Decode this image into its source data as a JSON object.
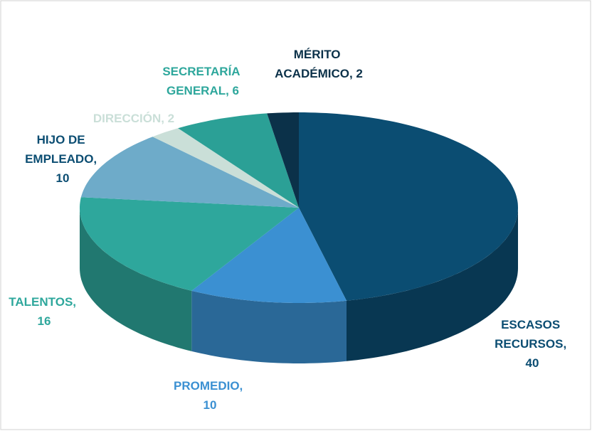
{
  "chart_data": {
    "type": "pie3d",
    "data_labels": [
      "ESCASOS RECURSOS, 40",
      "PROMEDIO, 10",
      "TALENTOS, 16",
      "HIJO DE EMPLEADO, 10",
      "DIRECCIÓN, 2",
      "SECRETARÍA GENERAL, 6",
      "MÉRITO ACADÉMICO, 2"
    ],
    "values": [
      40,
      10,
      16,
      10,
      2,
      6,
      2
    ],
    "colors": [
      "#0b4d72",
      "#3b90d2",
      "#2ea79c",
      "#6eabc9",
      "#cadfd8",
      "#2ba096",
      "#0b3149"
    ],
    "label_colors": [
      "#0b4d72",
      "#3b90d2",
      "#2ea79c",
      "#0b4d72",
      "#cadfd8",
      "#2ea79c",
      "#0b3149"
    ]
  }
}
